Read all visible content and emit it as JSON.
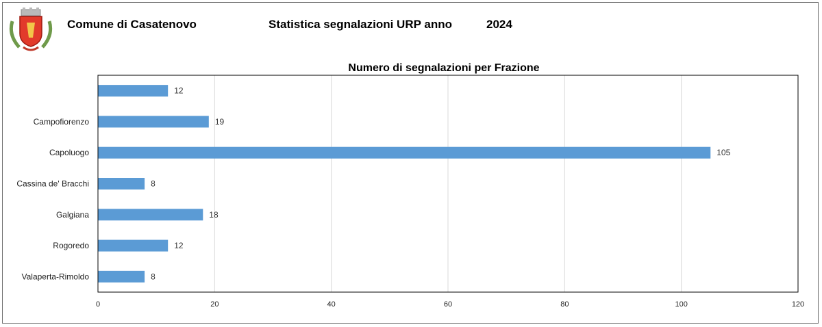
{
  "header": {
    "municipality": "Comune di Casatenovo",
    "report_title": "Statistica segnalazioni URP anno",
    "year": "2024"
  },
  "logo": {
    "icon": "municipal-coat-of-arms-icon"
  },
  "colors": {
    "bar": "#5b9bd5",
    "grid": "#d9d9d9",
    "border": "#000000"
  },
  "chart_data": {
    "type": "bar",
    "orientation": "horizontal",
    "title": "Numero di segnalazioni per Frazione",
    "categories": [
      "",
      "Campofiorenzo",
      "Capoluogo",
      "Cassina de' Bracchi",
      "Galgiana",
      "Rogoredo",
      "Valaperta-Rimoldo"
    ],
    "values": [
      12,
      19,
      105,
      8,
      18,
      12,
      8
    ],
    "xlim": [
      0,
      120
    ],
    "xticks": [
      0,
      20,
      40,
      60,
      80,
      100,
      120
    ],
    "grid": true,
    "legend": "none",
    "data_labels": true
  }
}
